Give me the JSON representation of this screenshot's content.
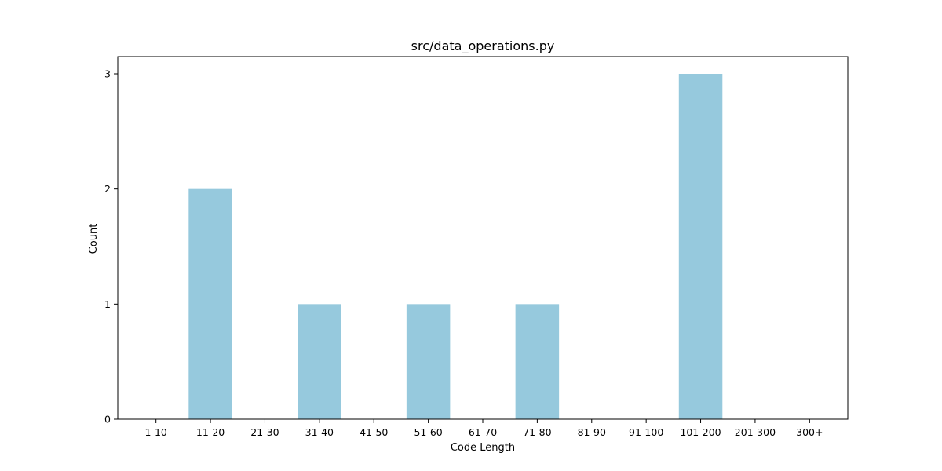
{
  "chart_data": {
    "type": "bar",
    "title": "src/data_operations.py",
    "xlabel": "Code Length",
    "ylabel": "Count",
    "categories": [
      "1-10",
      "11-20",
      "21-30",
      "31-40",
      "41-50",
      "51-60",
      "61-70",
      "71-80",
      "81-90",
      "91-100",
      "101-200",
      "201-300",
      "300+"
    ],
    "values": [
      0,
      2,
      0,
      1,
      0,
      1,
      0,
      1,
      0,
      0,
      3,
      0,
      0
    ],
    "yticks": [
      0,
      1,
      2,
      3
    ],
    "ylim": [
      0,
      3.15
    ],
    "grid": false,
    "bar_color": "#96c9dd"
  }
}
